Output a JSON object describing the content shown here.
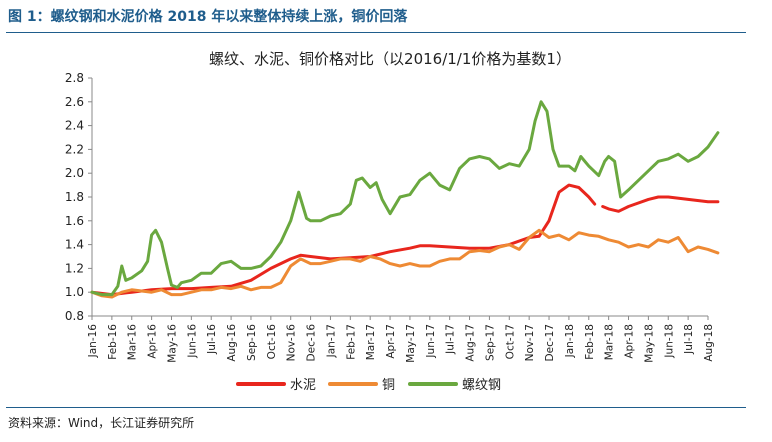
{
  "figure": {
    "title": "图 1：螺纹钢和水泥价格 2018 年以来整体持续上涨，铜价回落",
    "source": "资料来源：Wind，长江证券研究所"
  },
  "colors": {
    "cement": "#e8261d",
    "copper": "#ee8a34",
    "rebar": "#6aa83f",
    "axis": "#888888",
    "text": "#222222"
  },
  "chart_data": {
    "type": "line",
    "title": "螺纹、水泥、铜价格对比（以2016/1/1价格为基数1）",
    "xlabel": "",
    "ylabel": "",
    "ylim": [
      0.8,
      2.8
    ],
    "yticks": [
      0.8,
      1.0,
      1.2,
      1.4,
      1.6,
      1.8,
      2.0,
      2.2,
      2.4,
      2.6,
      2.8
    ],
    "grid": false,
    "legend": "bottom-center",
    "categories": [
      "Jan-16",
      "Feb-16",
      "Mar-16",
      "Apr-16",
      "May-16",
      "Jun-16",
      "Jul-16",
      "Aug-16",
      "Sep-16",
      "Oct-16",
      "Nov-16",
      "Dec-16",
      "Jan-17",
      "Feb-17",
      "Mar-17",
      "Apr-17",
      "May-17",
      "Jun-17",
      "Jul-17",
      "Aug-17",
      "Sep-17",
      "Oct-17",
      "Nov-17",
      "Dec-17",
      "Jan-18",
      "Feb-18",
      "Mar-18",
      "Apr-18",
      "May-18",
      "Jun-18",
      "Jul-18",
      "Aug-18"
    ],
    "series": [
      {
        "name": "水泥",
        "key": "cement",
        "segments": [
          [
            [
              0,
              1.0
            ],
            [
              1,
              0.98
            ],
            [
              2,
              1.0
            ],
            [
              3,
              1.02
            ],
            [
              4,
              1.03
            ],
            [
              5,
              1.03
            ],
            [
              6,
              1.04
            ],
            [
              7,
              1.05
            ],
            [
              8,
              1.1
            ],
            [
              9,
              1.2
            ],
            [
              10,
              1.28
            ],
            [
              10.5,
              1.31
            ],
            [
              11,
              1.3
            ],
            [
              12,
              1.28
            ],
            [
              13,
              1.29
            ],
            [
              14,
              1.3
            ],
            [
              15,
              1.34
            ],
            [
              16,
              1.37
            ],
            [
              16.5,
              1.39
            ],
            [
              17,
              1.39
            ],
            [
              18,
              1.38
            ],
            [
              19,
              1.37
            ],
            [
              20,
              1.37
            ],
            [
              21,
              1.4
            ],
            [
              22,
              1.46
            ],
            [
              22.5,
              1.47
            ],
            [
              23,
              1.6
            ],
            [
              23.5,
              1.84
            ],
            [
              24,
              1.9
            ],
            [
              24.5,
              1.88
            ],
            [
              25,
              1.8
            ],
            [
              25.3,
              1.74
            ]
          ],
          [
            [
              25.7,
              1.72
            ],
            [
              26,
              1.7
            ],
            [
              26.5,
              1.68
            ],
            [
              27,
              1.72
            ],
            [
              28,
              1.78
            ],
            [
              28.5,
              1.8
            ],
            [
              29,
              1.8
            ],
            [
              30,
              1.78
            ],
            [
              31,
              1.76
            ],
            [
              31.5,
              1.76
            ]
          ]
        ]
      },
      {
        "name": "铜",
        "key": "copper",
        "segments": [
          [
            [
              0,
              1.0
            ],
            [
              0.5,
              0.97
            ],
            [
              1,
              0.96
            ],
            [
              1.5,
              1.0
            ],
            [
              2,
              1.02
            ],
            [
              3,
              1.0
            ],
            [
              3.5,
              1.02
            ],
            [
              4,
              0.98
            ],
            [
              4.5,
              0.98
            ],
            [
              5,
              1.0
            ],
            [
              5.5,
              1.02
            ],
            [
              6,
              1.02
            ],
            [
              6.5,
              1.04
            ],
            [
              7,
              1.03
            ],
            [
              7.5,
              1.05
            ],
            [
              8,
              1.02
            ],
            [
              8.5,
              1.04
            ],
            [
              9,
              1.04
            ],
            [
              9.5,
              1.08
            ],
            [
              10,
              1.22
            ],
            [
              10.5,
              1.28
            ],
            [
              11,
              1.24
            ],
            [
              11.5,
              1.24
            ],
            [
              12,
              1.26
            ],
            [
              12.5,
              1.28
            ],
            [
              13,
              1.28
            ],
            [
              13.5,
              1.26
            ],
            [
              14,
              1.3
            ],
            [
              14.5,
              1.28
            ],
            [
              15,
              1.24
            ],
            [
              15.5,
              1.22
            ],
            [
              16,
              1.24
            ],
            [
              16.5,
              1.22
            ],
            [
              17,
              1.22
            ],
            [
              17.5,
              1.26
            ],
            [
              18,
              1.28
            ],
            [
              18.5,
              1.28
            ],
            [
              19,
              1.34
            ],
            [
              19.5,
              1.35
            ],
            [
              20,
              1.34
            ],
            [
              20.5,
              1.38
            ],
            [
              21,
              1.4
            ],
            [
              21.5,
              1.36
            ],
            [
              22,
              1.46
            ],
            [
              22.5,
              1.52
            ],
            [
              23,
              1.46
            ],
            [
              23.5,
              1.48
            ],
            [
              24,
              1.44
            ],
            [
              24.5,
              1.5
            ],
            [
              25,
              1.48
            ],
            [
              25.5,
              1.47
            ],
            [
              26,
              1.44
            ],
            [
              26.5,
              1.42
            ],
            [
              27,
              1.38
            ],
            [
              27.5,
              1.4
            ],
            [
              28,
              1.38
            ],
            [
              28.5,
              1.44
            ],
            [
              29,
              1.42
            ],
            [
              29.5,
              1.46
            ],
            [
              30,
              1.34
            ],
            [
              30.5,
              1.38
            ],
            [
              31,
              1.36
            ],
            [
              31.5,
              1.33
            ]
          ]
        ]
      },
      {
        "name": "螺纹钢",
        "key": "rebar",
        "segments": [
          [
            [
              0,
              1.0
            ],
            [
              0.5,
              0.98
            ],
            [
              1,
              0.98
            ],
            [
              1.3,
              1.05
            ],
            [
              1.5,
              1.22
            ],
            [
              1.7,
              1.1
            ],
            [
              2,
              1.12
            ],
            [
              2.5,
              1.18
            ],
            [
              2.8,
              1.26
            ],
            [
              3,
              1.48
            ],
            [
              3.2,
              1.52
            ],
            [
              3.5,
              1.42
            ],
            [
              3.8,
              1.2
            ],
            [
              4,
              1.06
            ],
            [
              4.3,
              1.04
            ],
            [
              4.5,
              1.08
            ],
            [
              5,
              1.1
            ],
            [
              5.5,
              1.16
            ],
            [
              6,
              1.16
            ],
            [
              6.5,
              1.24
            ],
            [
              7,
              1.26
            ],
            [
              7.5,
              1.2
            ],
            [
              8,
              1.2
            ],
            [
              8.5,
              1.22
            ],
            [
              9,
              1.3
            ],
            [
              9.5,
              1.42
            ],
            [
              10,
              1.6
            ],
            [
              10.4,
              1.84
            ],
            [
              10.8,
              1.62
            ],
            [
              11,
              1.6
            ],
            [
              11.5,
              1.6
            ],
            [
              12,
              1.64
            ],
            [
              12.5,
              1.66
            ],
            [
              13,
              1.74
            ],
            [
              13.3,
              1.94
            ],
            [
              13.6,
              1.96
            ],
            [
              14,
              1.88
            ],
            [
              14.3,
              1.92
            ],
            [
              14.6,
              1.78
            ],
            [
              15,
              1.66
            ],
            [
              15.5,
              1.8
            ],
            [
              16,
              1.82
            ],
            [
              16.5,
              1.94
            ],
            [
              17,
              2.0
            ],
            [
              17.5,
              1.9
            ],
            [
              18,
              1.86
            ],
            [
              18.5,
              2.04
            ],
            [
              19,
              2.12
            ],
            [
              19.5,
              2.14
            ],
            [
              20,
              2.12
            ],
            [
              20.5,
              2.04
            ],
            [
              21,
              2.08
            ],
            [
              21.5,
              2.06
            ],
            [
              22,
              2.2
            ],
            [
              22.3,
              2.44
            ],
            [
              22.6,
              2.6
            ],
            [
              22.9,
              2.52
            ],
            [
              23.2,
              2.2
            ],
            [
              23.5,
              2.06
            ],
            [
              24,
              2.06
            ],
            [
              24.3,
              2.02
            ],
            [
              24.6,
              2.14
            ],
            [
              25,
              2.06
            ],
            [
              25.5,
              1.98
            ],
            [
              25.8,
              2.1
            ],
            [
              26,
              2.14
            ],
            [
              26.3,
              2.1
            ],
            [
              26.6,
              1.8
            ],
            [
              27,
              1.86
            ],
            [
              27.5,
              1.94
            ],
            [
              28,
              2.02
            ],
            [
              28.5,
              2.1
            ],
            [
              29,
              2.12
            ],
            [
              29.5,
              2.16
            ],
            [
              30,
              2.1
            ],
            [
              30.5,
              2.14
            ],
            [
              31,
              2.22
            ],
            [
              31.5,
              2.34
            ]
          ]
        ]
      }
    ]
  }
}
